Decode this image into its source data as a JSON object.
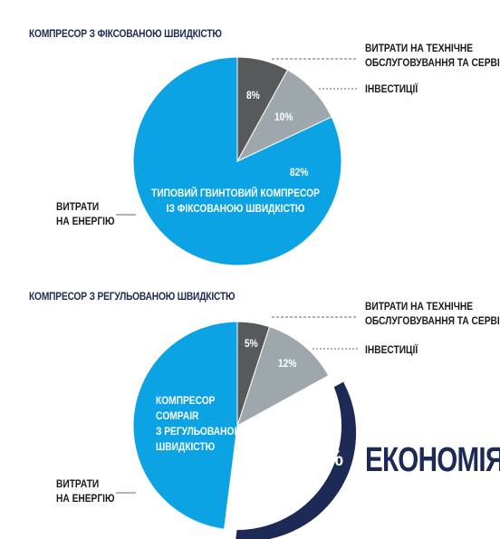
{
  "chart_data": [
    {
      "type": "pie",
      "title": "КОМПРЕСОР З ФІКСОВАНОЮ ШВИДКІСТЮ",
      "slices": [
        {
          "label": "ВИТРАТИ НА ТЕХНІЧНЕ ОБСЛУГОВУВАННЯ ТА СЕРВІС",
          "value": 8,
          "value_label": "8%",
          "color": "#58595b"
        },
        {
          "label": "ІНВЕСТИЦІЇ",
          "value": 10,
          "value_label": "10%",
          "color": "#9ea7ab"
        },
        {
          "label": "ВИТРАТИ НА ЕНЕРГІЮ",
          "value": 82,
          "value_label": "82%",
          "color": "#0ba3e4"
        }
      ],
      "center_label": [
        "ТИПОВИЙ ГВИНТОВИЙ КОМПРЕСОР",
        "ІЗ ФІКСОВАНОЮ ШВИДКІСТЮ"
      ]
    },
    {
      "type": "pie",
      "title": "КОМПРЕСОР З РЕГУЛЬОВАНОЮ ШВИДКІСТЮ",
      "slices": [
        {
          "label": "ВИТРАТИ НА ТЕХНІЧНЕ ОБСЛУГОВУВАННЯ ТА СЕРВІС",
          "value": 5,
          "value_label": "5%",
          "color": "#58595b"
        },
        {
          "label": "ІНВЕСТИЦІЇ",
          "value": 12,
          "value_label": "12%",
          "color": "#9ea7ab"
        },
        {
          "label": "ЕКОНОМІЯ",
          "value": 35,
          "value_label": "35%",
          "color": "#1c2a55",
          "exploded": true
        },
        {
          "label": "ВИТРАТИ НА ЕНЕРГІЮ",
          "value": 48,
          "value_label": "",
          "color": "#0ba3e4"
        }
      ],
      "center_label": [
        "КОМПРЕСОР",
        "COMPAIR",
        "З РЕГУЛЬОВАНОЮ",
        "ШВИДКІСТЮ"
      ]
    }
  ],
  "labels": {
    "maintenance": [
      "ВИТРАТИ НА ТЕХНІЧНЕ",
      "ОБСЛУГОВУВАННЯ ТА СЕРВІС"
    ],
    "investment": "ІНВЕСТИЦІЇ",
    "energy": [
      "ВИТРАТИ",
      "НА ЕНЕРГІЮ"
    ],
    "savings": "ЕКОНОМІЯ"
  }
}
